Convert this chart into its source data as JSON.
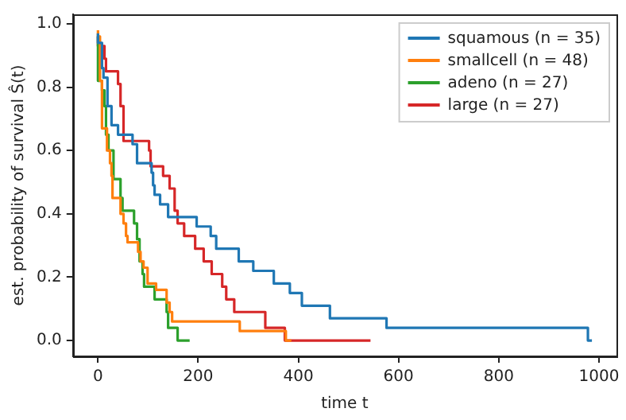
{
  "chart_data": {
    "type": "step",
    "xlabel": "time t",
    "ylabel": "est. probability of survival Ŝ(t)",
    "xlim": [
      -50,
      1035
    ],
    "ylim": [
      -0.05,
      1.03
    ],
    "xticks": [
      0,
      200,
      400,
      600,
      800,
      1000
    ],
    "yticks": [
      {
        "value": 0,
        "label": "0.0"
      },
      {
        "value": 0.2,
        "label": "0.2"
      },
      {
        "value": 0.4,
        "label": "0.4"
      },
      {
        "value": 0.6,
        "label": "0.6"
      },
      {
        "value": 0.8,
        "label": "0.8"
      },
      {
        "value": 1,
        "label": "1.0"
      }
    ],
    "grid": false,
    "legend": "top right",
    "marker": "none",
    "line_style": "solid",
    "series": [
      {
        "name": "squamous (n = 35)",
        "color": "#1f77b4",
        "x": [
          0,
          8,
          11,
          19,
          27,
          40,
          69,
          78,
          107,
          110,
          113,
          124,
          140,
          197,
          225,
          236,
          281,
          310,
          351,
          383,
          407,
          463,
          576,
          978,
          986
        ],
        "values": [
          0.97,
          0.94,
          0.86,
          0.83,
          0.74,
          0.68,
          0.65,
          0.62,
          0.56,
          0.53,
          0.49,
          0.46,
          0.43,
          0.39,
          0.36,
          0.33,
          0.29,
          0.25,
          0.22,
          0.18,
          0.15,
          0.11,
          0.07,
          0.04,
          0.0
        ]
      },
      {
        "name": "smallcell (n = 48)",
        "color": "#ff7f0e",
        "x": [
          0,
          4,
          8,
          18,
          24,
          27,
          29,
          45,
          51,
          56,
          59,
          80,
          85,
          91,
          99,
          116,
          137,
          143,
          148,
          283,
          375,
          386
        ],
        "values": [
          0.98,
          0.96,
          0.82,
          0.67,
          0.6,
          0.56,
          0.52,
          0.45,
          0.4,
          0.37,
          0.33,
          0.31,
          0.28,
          0.25,
          0.23,
          0.18,
          0.16,
          0.12,
          0.09,
          0.06,
          0.03,
          0.0
        ]
      },
      {
        "name": "adeno (n = 27)",
        "color": "#2ca02c",
        "x": [
          0,
          8,
          13,
          16,
          21,
          31,
          45,
          49,
          72,
          78,
          83,
          89,
          92,
          113,
          137,
          140,
          159,
          183
        ],
        "values": [
          0.96,
          0.82,
          0.79,
          0.74,
          0.65,
          0.6,
          0.51,
          0.45,
          0.41,
          0.37,
          0.32,
          0.25,
          0.21,
          0.17,
          0.13,
          0.09,
          0.04,
          0.0
        ]
      },
      {
        "name": "large (n = 27)",
        "color": "#d62728",
        "x": [
          0,
          13,
          16,
          40,
          45,
          51,
          102,
          105,
          130,
          143,
          153,
          159,
          172,
          194,
          211,
          227,
          248,
          256,
          272,
          334,
          373,
          544
        ],
        "values": [
          0.96,
          0.93,
          0.89,
          0.85,
          0.81,
          0.74,
          0.63,
          0.6,
          0.55,
          0.52,
          0.48,
          0.41,
          0.37,
          0.33,
          0.29,
          0.25,
          0.21,
          0.17,
          0.13,
          0.09,
          0.04,
          0.0
        ]
      }
    ]
  }
}
